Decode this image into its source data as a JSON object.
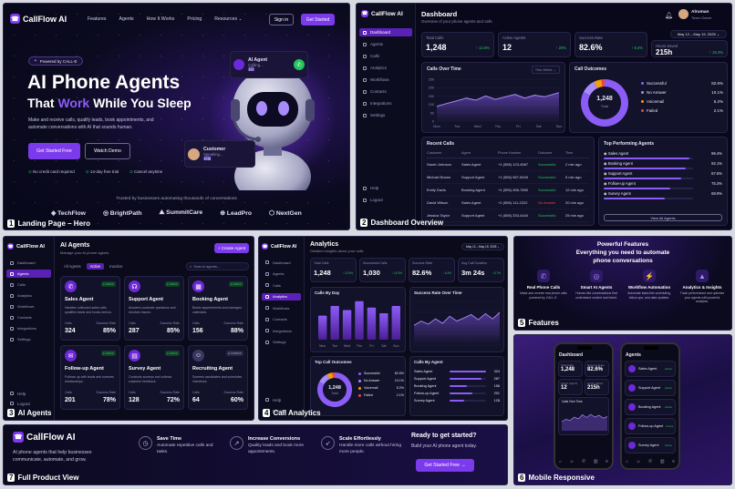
{
  "brand": {
    "name": "CallFlow AI"
  },
  "hero": {
    "nav": [
      "Features",
      "Agents",
      "How It Works",
      "Pricing",
      "Resources ⌄"
    ],
    "sign_in": "Sign in",
    "get_started": "Get Started",
    "badge": "Powered by CALL-E",
    "title1": "AI Phone Agents",
    "title2a": "That ",
    "title2b": "Work",
    "title2c": " While You Sleep",
    "desc": "Make and receive calls, qualify leads, book appointments, and automate conversations with AI that sounds human.",
    "cta_primary": "Get Started Free",
    "cta_secondary": "Watch Demo",
    "checks": [
      "No credit card required",
      "14-day free trial",
      "Cancel anytime"
    ],
    "agent_bubble": {
      "title": "AI Agent",
      "sub": "Calling..."
    },
    "customer_bubble": {
      "title": "Customer",
      "sub": "Speaking..."
    },
    "trusted": "Trusted by businesses automating thousands of conversations",
    "partners": [
      "TechFlow",
      "BrightPath",
      "SummitCare",
      "LeadPro",
      "NextGen"
    ],
    "caption_num": "1",
    "caption": "Landing Page – Hero"
  },
  "dashboard": {
    "side": [
      "Dashboard",
      "Agents",
      "Calls",
      "Analytics",
      "Workflows",
      "Contacts",
      "Integrations",
      "Settings"
    ],
    "side_bottom": [
      "Help",
      "Logout"
    ],
    "title": "Dashboard",
    "subtitle": "Overview of your phone agents and calls",
    "user": "Alruman",
    "role": "Team Owner",
    "range": "May 12 – May 19, 2025 ⌄",
    "stats": [
      {
        "label": "Total Calls",
        "value": "1,248",
        "delta": "↑ 12.5%"
      },
      {
        "label": "Active Agents",
        "value": "12",
        "delta": "↑ 20%"
      },
      {
        "label": "Success Rate",
        "value": "82.6%",
        "delta": "↑ 6.4%"
      },
      {
        "label": "Hours Saved",
        "value": "215h",
        "delta": "↑ 15.3%"
      }
    ],
    "calls_title": "Calls Over Time",
    "calls_filter": "This Week ⌄",
    "calls_ylabels": [
      "250",
      "200",
      "150",
      "100",
      "50",
      "0"
    ],
    "calls_xlabels": [
      "Mon",
      "Tue",
      "Wed",
      "Thu",
      "Fri",
      "Sat",
      "Sun"
    ],
    "outcomes_title": "Call Outcomes",
    "outcomes_center": "1,248",
    "outcomes_center_label": "Total",
    "outcomes": [
      {
        "label": "Successful",
        "value": "82.6%",
        "color": "#8b5cf6"
      },
      {
        "label": "No Answer",
        "value": "10.1%",
        "color": "#a78bfa"
      },
      {
        "label": "Voicemail",
        "value": "5.2%",
        "color": "#f59e0b"
      },
      {
        "label": "Failed",
        "value": "2.1%",
        "color": "#ef4444"
      }
    ],
    "recent_title": "Recent Calls",
    "recent_headers": [
      "Customer",
      "Agent",
      "Phone Number",
      "Outcome",
      "Time"
    ],
    "recent_rows": [
      [
        "Sarah Johnson",
        "Sales Agent",
        "+1 (555) 123-4567",
        "Successful",
        "2 min ago"
      ],
      [
        "Michael Brown",
        "Support Agent",
        "+1 (555) 987-6543",
        "Successful",
        "5 min ago"
      ],
      [
        "Emily Davis",
        "Booking Agent",
        "+1 (555) 456-7890",
        "Successful",
        "12 min ago"
      ],
      [
        "David Wilson",
        "Sales Agent",
        "+1 (555) 111-2222",
        "No Answer",
        "20 min ago"
      ],
      [
        "Jessica Taylor",
        "Support Agent",
        "+1 (555) 333-4444",
        "Successful",
        "25 min ago"
      ]
    ],
    "top_title": "Top Performing Agents",
    "top": [
      {
        "name": "Sales Agent",
        "value": "96.4%"
      },
      {
        "name": "Booking Agent",
        "value": "92.1%"
      },
      {
        "name": "Support Agent",
        "value": "87.6%"
      },
      {
        "name": "Follow-up Agent",
        "value": "75.3%"
      },
      {
        "name": "Survey Agent",
        "value": "68.9%"
      }
    ],
    "view_all": "View All Agents",
    "caption_num": "2",
    "caption": "Dashboard Overview"
  },
  "agents": {
    "side": [
      "Dashboard",
      "Agents",
      "Calls",
      "Analytics",
      "Workflows",
      "Contacts",
      "Integrations",
      "Settings"
    ],
    "side_bottom": [
      "Help",
      "Logout"
    ],
    "title": "AI Agents",
    "subtitle": "Manage your AI phone agents",
    "create": "+ Create Agent",
    "tabs": [
      "All Agents",
      "Active",
      "Inactive"
    ],
    "search": "Search agents...",
    "cards": [
      {
        "name": "Sales Agent",
        "status": "Active",
        "desc": "Handles outbound sales calls, qualifies leads and books demos.",
        "calls": "324",
        "rate": "85%"
      },
      {
        "name": "Support Agent",
        "status": "Active",
        "desc": "Answers customer questions and resolves issues.",
        "calls": "287",
        "rate": "85%"
      },
      {
        "name": "Booking Agent",
        "status": "Active",
        "desc": "Books appointments and manages calendars.",
        "calls": "156",
        "rate": "88%"
      },
      {
        "name": "Follow-up Agent",
        "status": "Active",
        "desc": "Follows up with leads and nurtures relationships.",
        "calls": "201",
        "rate": "78%"
      },
      {
        "name": "Survey Agent",
        "status": "Active",
        "desc": "Conducts surveys and collects customer feedback.",
        "calls": "128",
        "rate": "72%"
      },
      {
        "name": "Recruiting Agent",
        "status": "Inactive",
        "desc": "Screens candidates and schedules interviews.",
        "calls": "64",
        "rate": "60%"
      }
    ],
    "calls_label": "Calls",
    "rate_label": "Success Rate",
    "caption_num": "3",
    "caption": "AI Agents"
  },
  "analytics": {
    "side": [
      "Dashboard",
      "Agents",
      "Calls",
      "Analytics",
      "Workflows",
      "Contacts",
      "Integrations",
      "Settings"
    ],
    "side_bottom": [
      "Help",
      "Logout"
    ],
    "title": "Analytics",
    "subtitle": "Detailed insights about your calls",
    "range": "May 12 – May 19, 2025 ⌄",
    "stats": [
      {
        "label": "Total Calls",
        "value": "1,248",
        "delta": "↑ 12.5%"
      },
      {
        "label": "Successful Calls",
        "value": "1,030",
        "delta": "↑ 14.3%"
      },
      {
        "label": "Success Rate",
        "value": "82.6%",
        "delta": "↑ 6.4%"
      },
      {
        "label": "Avg Call Duration",
        "value": "3m 24s",
        "delta": "↑ 8.7%"
      }
    ],
    "byday_title": "Calls By Day",
    "byday_days": [
      "Mon",
      "Tue",
      "Wed",
      "Thu",
      "Fri",
      "Sat",
      "Sun"
    ],
    "byday_values": [
      150,
      210,
      185,
      240,
      200,
      165,
      210
    ],
    "rate_title": "Success Rate Over Time",
    "outcomes_title": "Top Call Outcomes",
    "outcomes_center": "1,248",
    "outcomes_center_label": "Total",
    "outcomes": [
      {
        "label": "Successful",
        "value": "82.6%",
        "color": "#8b5cf6"
      },
      {
        "label": "No Answer",
        "value": "10.1%",
        "color": "#a78bfa"
      },
      {
        "label": "Voicemail",
        "value": "5.2%",
        "color": "#f59e0b"
      },
      {
        "label": "Failed",
        "value": "2.1%",
        "color": "#ef4444"
      }
    ],
    "byagent_title": "Calls By Agent",
    "byagent": [
      {
        "name": "Sales Agent",
        "value": "324"
      },
      {
        "name": "Support Agent",
        "value": "287"
      },
      {
        "name": "Booking Agent",
        "value": "156"
      },
      {
        "name": "Follow-up Agent",
        "value": "201"
      },
      {
        "name": "Survey Agent",
        "value": "128"
      }
    ],
    "caption_num": "4",
    "caption": "Call Analytics"
  },
  "features": {
    "title1": "Powerful Features",
    "title2": "Everything you need to automate",
    "title3": "phone conversations",
    "items": [
      {
        "name": "Real Phone Calls",
        "desc": "Make and receive real phone calls powered by CALL-E."
      },
      {
        "name": "Smart AI Agents",
        "desc": "Human-like conversations that understand context and intent."
      },
      {
        "name": "Workflow Automation",
        "desc": "Automate tasks like scheduling, follow-ups, and data updates."
      },
      {
        "name": "Analytics & Insights",
        "desc": "Track performance and optimize your agents with powerful analytics."
      }
    ],
    "caption_num": "5",
    "caption": "Features"
  },
  "mobile": {
    "dash_title": "Dashboard",
    "dash_stats": [
      {
        "label": "Total Calls",
        "value": "1,248"
      },
      {
        "label": "Success Rate",
        "value": "82.6%"
      },
      {
        "label": "Active Agents",
        "value": "12"
      },
      {
        "label": "Hours Saved",
        "value": "215h"
      }
    ],
    "dash_chart": "Calls Over Time",
    "agents_title": "Agents",
    "agents": [
      {
        "name": "Sales Agent",
        "status": "Active"
      },
      {
        "name": "Support Agent",
        "status": "Active"
      },
      {
        "name": "Booking Agent",
        "status": "Active"
      },
      {
        "name": "Follow-up Agent",
        "status": "Active"
      },
      {
        "name": "Survey Agent",
        "status": "Active"
      }
    ],
    "caption_num": "6",
    "caption": "Mobile Responsive"
  },
  "footer": {
    "desc": "AI phone agents that help businesses communicate, automate, and grow.",
    "items": [
      {
        "title": "Save Time",
        "desc": "Automate repetitive calls and tasks."
      },
      {
        "title": "Increase Conversions",
        "desc": "Quality leads and book more appointments."
      },
      {
        "title": "Scale Effortlessly",
        "desc": "Handle more calls without hiring more people."
      }
    ],
    "cta_title": "Ready to get started?",
    "cta_sub": "Build your AI phone agent today.",
    "cta_btn": "Get Started Free →",
    "caption_num": "7",
    "caption": "Full Product View"
  }
}
